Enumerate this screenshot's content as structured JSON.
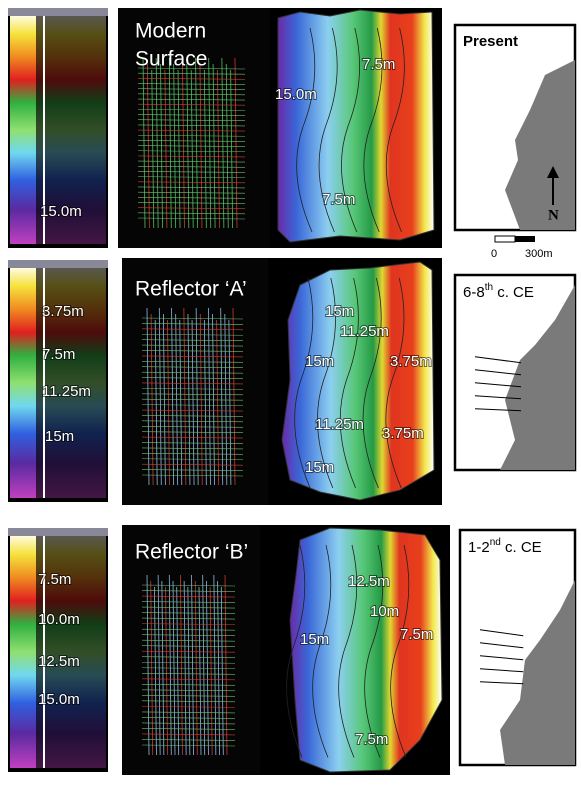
{
  "panels": [
    {
      "title": [
        "Modern",
        "Surface"
      ],
      "colorbar_labels": [
        "15.0m"
      ],
      "map_labels": [
        "7.5m",
        "15.0m",
        "7.5m"
      ],
      "inset": {
        "label": "Present",
        "north": "N",
        "scale": [
          "0",
          "300m"
        ]
      }
    },
    {
      "title": [
        "Reflector ‘A’"
      ],
      "colorbar_labels": [
        "3.75m",
        "7.5m",
        "11.25m",
        "15m"
      ],
      "map_labels": [
        "15m",
        "11.25m",
        "15m",
        "3.75m",
        "11.25m",
        "3.75m",
        "15m"
      ],
      "inset": {
        "label_main": "6-8",
        "label_sup": "th",
        "label_tail": " c. CE"
      }
    },
    {
      "title": [
        "Reflector ‘B’"
      ],
      "colorbar_labels": [
        "7.5m",
        "10.0m",
        "12.5m",
        "15.0m"
      ],
      "map_labels": [
        "12.5m",
        "10m",
        "7.5m",
        "15m",
        "7.5m"
      ],
      "inset": {
        "label_main": "1-2",
        "label_sup": "nd",
        "label_tail": " c. CE"
      }
    }
  ]
}
